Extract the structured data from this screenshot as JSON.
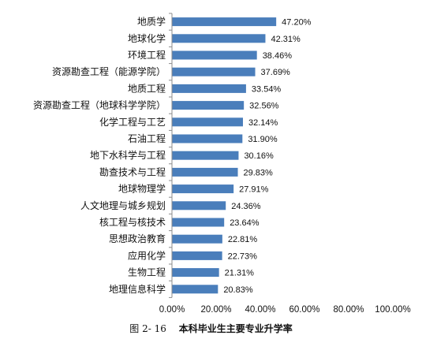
{
  "chart_data": {
    "type": "bar",
    "orientation": "horizontal",
    "categories": [
      "地质学",
      "地球化学",
      "环境工程",
      "资源勘查工程（能源学院）",
      "地质工程",
      "资源勘查工程（地球科学学院）",
      "化学工程与工艺",
      "石油工程",
      "地下水科学与工程",
      "勘查技术与工程",
      "地球物理学",
      "人文地理与城乡规划",
      "核工程与核技术",
      "思想政治教育",
      "应用化学",
      "生物工程",
      "地理信息科学"
    ],
    "values": [
      47.2,
      42.31,
      38.46,
      37.69,
      33.54,
      32.56,
      32.14,
      31.9,
      30.16,
      29.83,
      27.91,
      24.36,
      23.64,
      22.81,
      22.73,
      21.31,
      20.83
    ],
    "value_labels": [
      "47.20%",
      "42.31%",
      "38.46%",
      "37.69%",
      "33.54%",
      "32.56%",
      "32.14%",
      "31.90%",
      "30.16%",
      "29.83%",
      "27.91%",
      "24.36%",
      "23.64%",
      "22.81%",
      "22.73%",
      "21.31%",
      "20.83%"
    ],
    "xlim": [
      0,
      100
    ],
    "x_ticks": [
      "0.00%",
      "20.00%",
      "40.00%",
      "60.00%",
      "80.00%",
      "100.00%"
    ],
    "grid": false,
    "bar_color": "#4a7ebb",
    "caption_number": "图 2- 16",
    "caption_title": "本科毕业生主要专业升学率"
  }
}
